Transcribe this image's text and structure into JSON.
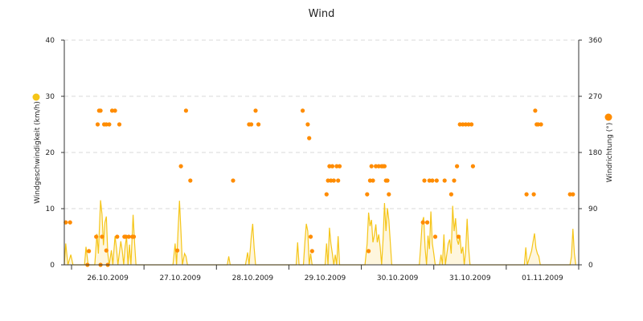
{
  "chart_data": {
    "type": "line",
    "title": "Wind",
    "ylabel_left": "Windgeschwindigkeit (km/h)",
    "ylabel_right": "Windrichtung (°)",
    "ylim_left": [
      0,
      40
    ],
    "yticks_left": [
      "0",
      "10",
      "20",
      "30",
      "40"
    ],
    "ylim_right": [
      0,
      360
    ],
    "yticks_right": [
      "0",
      "90",
      "180",
      "270",
      "360"
    ],
    "xlim": [
      0,
      7.1
    ],
    "x_unit": "days since 25.10.2009 20:00",
    "x_tick_labels": [
      "26.10.2009",
      "27.10.2009",
      "28.10.2009",
      "29.10.2009",
      "30.10.2009",
      "31.10.2009",
      "01.11.2009"
    ],
    "grid": "horizontal dashed",
    "colors": {
      "speed": "#f5c518",
      "direction": "#ff8c00"
    },
    "series": [
      {
        "name": "Windgeschwindigkeit",
        "type": "area-line",
        "points": [
          [
            0.0,
            0
          ],
          [
            0.02,
            3.8
          ],
          [
            0.05,
            0
          ],
          [
            0.09,
            1.8
          ],
          [
            0.12,
            0
          ],
          [
            0.28,
            0
          ],
          [
            0.3,
            3.2
          ],
          [
            0.33,
            0
          ],
          [
            0.42,
            0
          ],
          [
            0.45,
            5.5
          ],
          [
            0.47,
            2
          ],
          [
            0.5,
            11.5
          ],
          [
            0.52,
            9
          ],
          [
            0.54,
            3.5
          ],
          [
            0.56,
            7.5
          ],
          [
            0.58,
            8.6
          ],
          [
            0.6,
            2
          ],
          [
            0.62,
            0
          ],
          [
            0.65,
            2.6
          ],
          [
            0.67,
            0
          ],
          [
            0.7,
            5.1
          ],
          [
            0.72,
            3
          ],
          [
            0.74,
            0
          ],
          [
            0.78,
            4.2
          ],
          [
            0.8,
            2.5
          ],
          [
            0.82,
            0
          ],
          [
            0.84,
            3.3
          ],
          [
            0.86,
            5
          ],
          [
            0.88,
            0
          ],
          [
            0.9,
            3.6
          ],
          [
            0.92,
            0
          ],
          [
            0.95,
            8.9
          ],
          [
            0.97,
            4
          ],
          [
            0.99,
            0
          ],
          [
            1.5,
            0
          ],
          [
            1.53,
            3.8
          ],
          [
            1.55,
            0
          ],
          [
            1.57,
            6
          ],
          [
            1.59,
            11.4
          ],
          [
            1.61,
            6
          ],
          [
            1.63,
            0
          ],
          [
            1.66,
            2
          ],
          [
            1.68,
            1.5
          ],
          [
            1.7,
            0
          ],
          [
            2.25,
            0
          ],
          [
            2.27,
            1.5
          ],
          [
            2.29,
            0
          ],
          [
            2.5,
            0
          ],
          [
            2.53,
            2.2
          ],
          [
            2.55,
            0
          ],
          [
            2.58,
            5
          ],
          [
            2.6,
            7.3
          ],
          [
            2.62,
            3
          ],
          [
            2.64,
            0
          ],
          [
            3.2,
            0
          ],
          [
            3.22,
            4
          ],
          [
            3.24,
            0
          ],
          [
            3.3,
            0
          ],
          [
            3.32,
            4
          ],
          [
            3.34,
            7.3
          ],
          [
            3.36,
            6
          ],
          [
            3.38,
            0
          ],
          [
            3.4,
            2
          ],
          [
            3.42,
            0
          ],
          [
            3.6,
            0
          ],
          [
            3.62,
            3.8
          ],
          [
            3.64,
            0
          ],
          [
            3.66,
            6.6
          ],
          [
            3.68,
            3.8
          ],
          [
            3.7,
            2
          ],
          [
            3.72,
            0
          ],
          [
            3.74,
            1.8
          ],
          [
            3.76,
            0
          ],
          [
            3.78,
            5.1
          ],
          [
            3.8,
            0
          ],
          [
            4.15,
            0
          ],
          [
            4.18,
            3.8
          ],
          [
            4.2,
            9.3
          ],
          [
            4.22,
            6.9
          ],
          [
            4.24,
            8
          ],
          [
            4.26,
            4
          ],
          [
            4.28,
            5.3
          ],
          [
            4.3,
            7.2
          ],
          [
            4.32,
            4
          ],
          [
            4.34,
            5.4
          ],
          [
            4.36,
            3.2
          ],
          [
            4.38,
            0
          ],
          [
            4.4,
            4.5
          ],
          [
            4.42,
            11
          ],
          [
            4.44,
            6
          ],
          [
            4.46,
            10.1
          ],
          [
            4.48,
            8
          ],
          [
            4.5,
            4
          ],
          [
            4.52,
            0
          ],
          [
            4.9,
            0
          ],
          [
            4.92,
            3.5
          ],
          [
            4.94,
            7.6
          ],
          [
            4.96,
            8.5
          ],
          [
            4.98,
            3
          ],
          [
            5.0,
            0
          ],
          [
            5.02,
            5.2
          ],
          [
            5.04,
            2.8
          ],
          [
            5.06,
            9.5
          ],
          [
            5.08,
            3.8
          ],
          [
            5.1,
            2
          ],
          [
            5.12,
            0
          ],
          [
            5.15,
            0
          ],
          [
            5.18,
            0
          ],
          [
            5.2,
            1.8
          ],
          [
            5.22,
            0
          ],
          [
            5.24,
            5.4
          ],
          [
            5.26,
            0
          ],
          [
            5.3,
            3.8
          ],
          [
            5.32,
            4.5
          ],
          [
            5.34,
            2
          ],
          [
            5.36,
            10.5
          ],
          [
            5.38,
            6
          ],
          [
            5.4,
            8.3
          ],
          [
            5.42,
            4.5
          ],
          [
            5.44,
            3.6
          ],
          [
            5.46,
            5.3
          ],
          [
            5.48,
            2
          ],
          [
            5.5,
            3.2
          ],
          [
            5.52,
            0
          ],
          [
            5.54,
            2.5
          ],
          [
            5.56,
            8.2
          ],
          [
            5.58,
            3
          ],
          [
            5.6,
            0
          ],
          [
            6.35,
            0
          ],
          [
            6.37,
            3.1
          ],
          [
            6.39,
            0
          ],
          [
            6.45,
            2.5
          ],
          [
            6.47,
            4.1
          ],
          [
            6.49,
            5.6
          ],
          [
            6.51,
            3
          ],
          [
            6.53,
            2
          ],
          [
            6.55,
            1.5
          ],
          [
            6.57,
            0
          ],
          [
            6.98,
            0
          ],
          [
            7.0,
            1.5
          ],
          [
            7.02,
            6.4
          ],
          [
            7.04,
            2
          ],
          [
            7.06,
            0
          ]
        ]
      },
      {
        "name": "Windrichtung",
        "type": "scatter",
        "axis": "right",
        "points": [
          [
            0.02,
            68
          ],
          [
            0.08,
            68
          ],
          [
            0.32,
            0
          ],
          [
            0.34,
            22
          ],
          [
            0.5,
            0
          ],
          [
            0.44,
            45
          ],
          [
            0.46,
            225
          ],
          [
            0.48,
            247
          ],
          [
            0.5,
            247
          ],
          [
            0.52,
            45
          ],
          [
            0.55,
            225
          ],
          [
            0.58,
            225
          ],
          [
            0.6,
            0
          ],
          [
            0.58,
            23
          ],
          [
            0.62,
            225
          ],
          [
            0.66,
            247
          ],
          [
            0.7,
            247
          ],
          [
            0.73,
            45
          ],
          [
            0.76,
            225
          ],
          [
            0.83,
            45
          ],
          [
            0.85,
            45
          ],
          [
            0.89,
            45
          ],
          [
            0.94,
            45
          ],
          [
            0.96,
            45
          ],
          [
            1.56,
            23
          ],
          [
            1.61,
            158
          ],
          [
            1.68,
            247
          ],
          [
            1.74,
            135
          ],
          [
            2.33,
            135
          ],
          [
            2.55,
            225
          ],
          [
            2.58,
            225
          ],
          [
            2.64,
            247
          ],
          [
            2.68,
            225
          ],
          [
            3.29,
            247
          ],
          [
            3.36,
            225
          ],
          [
            3.38,
            203
          ],
          [
            3.4,
            45
          ],
          [
            3.42,
            22
          ],
          [
            3.62,
            113
          ],
          [
            3.64,
            135
          ],
          [
            3.66,
            158
          ],
          [
            3.68,
            135
          ],
          [
            3.7,
            158
          ],
          [
            3.72,
            135
          ],
          [
            3.76,
            158
          ],
          [
            3.78,
            135
          ],
          [
            3.8,
            158
          ],
          [
            4.18,
            113
          ],
          [
            4.2,
            22
          ],
          [
            4.22,
            135
          ],
          [
            4.24,
            158
          ],
          [
            4.26,
            135
          ],
          [
            4.3,
            158
          ],
          [
            4.34,
            158
          ],
          [
            4.38,
            158
          ],
          [
            4.4,
            158
          ],
          [
            4.42,
            158
          ],
          [
            4.44,
            135
          ],
          [
            4.46,
            135
          ],
          [
            4.48,
            113
          ],
          [
            4.95,
            68
          ],
          [
            4.97,
            135
          ],
          [
            5.01,
            68
          ],
          [
            5.04,
            135
          ],
          [
            5.08,
            135
          ],
          [
            5.12,
            45
          ],
          [
            5.14,
            135
          ],
          [
            5.25,
            135
          ],
          [
            5.34,
            113
          ],
          [
            5.38,
            135
          ],
          [
            5.42,
            158
          ],
          [
            5.44,
            45
          ],
          [
            5.46,
            225
          ],
          [
            5.5,
            225
          ],
          [
            5.54,
            225
          ],
          [
            5.58,
            225
          ],
          [
            5.62,
            225
          ],
          [
            5.64,
            158
          ],
          [
            6.38,
            113
          ],
          [
            6.48,
            113
          ],
          [
            6.5,
            247
          ],
          [
            6.52,
            225
          ],
          [
            6.54,
            225
          ],
          [
            6.58,
            225
          ],
          [
            6.98,
            113
          ],
          [
            7.02,
            113
          ]
        ]
      }
    ]
  }
}
